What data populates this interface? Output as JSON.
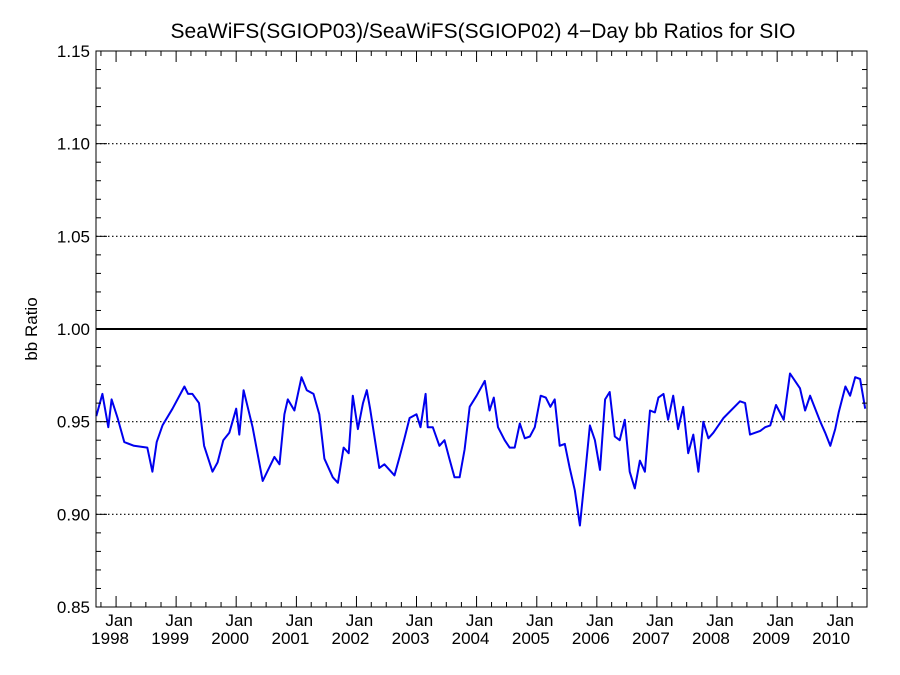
{
  "chart_data": {
    "type": "line",
    "title": "SeaWiFS(SGIOP03)/SeaWiFS(SGIOP02) 4−Day bb Ratios for SIO",
    "xlabel": "",
    "ylabel": "bb Ratio",
    "ylim": [
      0.85,
      1.15
    ],
    "xlim": [
      "1997-09-01",
      "2010-07-01"
    ],
    "y_ticks": [
      "0.85",
      "0.90",
      "0.95",
      "1.00",
      "1.05",
      "1.10",
      "1.15"
    ],
    "x_ticks": [
      {
        "month": "Jan",
        "year": "1998",
        "date": "1998-01-01"
      },
      {
        "month": "Jan",
        "year": "1999",
        "date": "1999-01-01"
      },
      {
        "month": "Jan",
        "year": "2000",
        "date": "2000-01-01"
      },
      {
        "month": "Jan",
        "year": "2001",
        "date": "2001-01-01"
      },
      {
        "month": "Jan",
        "year": "2002",
        "date": "2002-01-01"
      },
      {
        "month": "Jan",
        "year": "2003",
        "date": "2003-01-01"
      },
      {
        "month": "Jan",
        "year": "2004",
        "date": "2004-01-01"
      },
      {
        "month": "Jan",
        "year": "2005",
        "date": "2005-01-01"
      },
      {
        "month": "Jan",
        "year": "2006",
        "date": "2006-01-01"
      },
      {
        "month": "Jan",
        "year": "2007",
        "date": "2007-01-01"
      },
      {
        "month": "Jan",
        "year": "2008",
        "date": "2008-01-01"
      },
      {
        "month": "Jan",
        "year": "2009",
        "date": "2009-01-01"
      },
      {
        "month": "Jan",
        "year": "2010",
        "date": "2010-01-01"
      }
    ],
    "grid": "dotted horizontal at 0.90, 0.95, 1.05, 1.10",
    "reference_line": 1.0,
    "colors": {
      "series": "#0000ee",
      "reference": "#000000",
      "grid": "#000000"
    },
    "series": [
      {
        "x": [
          "1997-09-03",
          "1997-10-10",
          "1997-11-15",
          "1997-12-05",
          "1998-01-10",
          "1998-02-20",
          "1998-04-20",
          "1998-07-10",
          "1998-08-10",
          "1998-09-05",
          "1998-10-10",
          "1998-12-10",
          "1999-02-20",
          "1999-03-15",
          "1999-04-10",
          "1999-05-20",
          "1999-06-20",
          "1999-08-10",
          "1999-09-10",
          "1999-10-15",
          "1999-11-20",
          "2000-01-01",
          "2000-01-20",
          "2000-02-15",
          "2000-04-10",
          "2000-06-10",
          "2000-08-20",
          "2000-09-20",
          "2000-10-20",
          "2000-11-10",
          "2000-12-20",
          "2001-02-01",
          "2001-03-05",
          "2001-04-15",
          "2001-05-20",
          "2001-06-20",
          "2001-08-10",
          "2001-09-10",
          "2001-10-15",
          "2001-11-15",
          "2001-12-10",
          "2002-01-10",
          "2002-02-10",
          "2002-03-05",
          "2002-03-25",
          "2002-05-20",
          "2002-06-20",
          "2002-08-20",
          "2002-09-20",
          "2002-10-20",
          "2002-11-20",
          "2003-01-01",
          "2003-01-25",
          "2003-02-25",
          "2003-03-10",
          "2003-04-10",
          "2003-05-20",
          "2003-06-20",
          "2003-07-20",
          "2003-08-20",
          "2003-09-20",
          "2003-10-20",
          "2003-11-20",
          "2004-01-01",
          "2004-02-20",
          "2004-03-20",
          "2004-04-15",
          "2004-05-10",
          "2004-06-20",
          "2004-07-20",
          "2004-08-20",
          "2004-09-20",
          "2004-10-20",
          "2004-11-20",
          "2004-12-20",
          "2005-01-25",
          "2005-02-25",
          "2005-03-25",
          "2005-04-20",
          "2005-05-20",
          "2005-06-20",
          "2005-07-20",
          "2005-08-20",
          "2005-09-20",
          "2005-10-20",
          "2005-11-20",
          "2005-12-20",
          "2006-01-20",
          "2006-02-20",
          "2006-03-20",
          "2006-04-20",
          "2006-05-20",
          "2006-06-20",
          "2006-07-20",
          "2006-08-20",
          "2006-09-20",
          "2006-10-20",
          "2006-11-20",
          "2006-12-20",
          "2007-01-10",
          "2007-02-10",
          "2007-03-10",
          "2007-04-10",
          "2007-05-10",
          "2007-06-10",
          "2007-07-10",
          "2007-08-10",
          "2007-09-10",
          "2007-10-10",
          "2007-11-10",
          "2007-12-10",
          "2008-01-10",
          "2008-02-10",
          "2008-05-20",
          "2008-06-20",
          "2008-07-20",
          "2008-09-20",
          "2008-10-20",
          "2008-11-20",
          "2008-12-25",
          "2009-02-10",
          "2009-03-20",
          "2009-05-20",
          "2009-06-20",
          "2009-07-20",
          "2009-08-20",
          "2009-09-20",
          "2009-10-20",
          "2009-11-20",
          "2009-12-20",
          "2010-01-10",
          "2010-02-20",
          "2010-03-20",
          "2010-04-20",
          "2010-05-20",
          "2010-06-20"
        ],
        "y": [
          0.953,
          0.965,
          0.947,
          0.962,
          0.952,
          0.939,
          0.937,
          0.936,
          0.923,
          0.939,
          0.948,
          0.957,
          0.969,
          0.965,
          0.965,
          0.96,
          0.937,
          0.923,
          0.928,
          0.94,
          0.944,
          0.957,
          0.943,
          0.967,
          0.947,
          0.918,
          0.931,
          0.927,
          0.954,
          0.962,
          0.956,
          0.974,
          0.967,
          0.965,
          0.954,
          0.93,
          0.92,
          0.917,
          0.936,
          0.933,
          0.964,
          0.946,
          0.96,
          0.967,
          0.957,
          0.925,
          0.927,
          0.921,
          0.931,
          0.941,
          0.952,
          0.954,
          0.947,
          0.965,
          0.947,
          0.947,
          0.937,
          0.94,
          0.93,
          0.92,
          0.92,
          0.935,
          0.958,
          0.964,
          0.972,
          0.956,
          0.963,
          0.947,
          0.94,
          0.936,
          0.936,
          0.949,
          0.941,
          0.942,
          0.947,
          0.964,
          0.963,
          0.958,
          0.962,
          0.937,
          0.938,
          0.925,
          0.913,
          0.894,
          0.92,
          0.948,
          0.94,
          0.924,
          0.962,
          0.966,
          0.942,
          0.94,
          0.951,
          0.923,
          0.914,
          0.929,
          0.923,
          0.956,
          0.955,
          0.963,
          0.965,
          0.951,
          0.964,
          0.946,
          0.958,
          0.933,
          0.943,
          0.923,
          0.95,
          0.941,
          0.944,
          0.948,
          0.952,
          0.961,
          0.96,
          0.943,
          0.945,
          0.947,
          0.948,
          0.959,
          0.951,
          0.976,
          0.968,
          0.956,
          0.964,
          0.957,
          0.95,
          0.944,
          0.937,
          0.946,
          0.955,
          0.969,
          0.964,
          0.974,
          0.973,
          0.957
        ]
      }
    ]
  }
}
